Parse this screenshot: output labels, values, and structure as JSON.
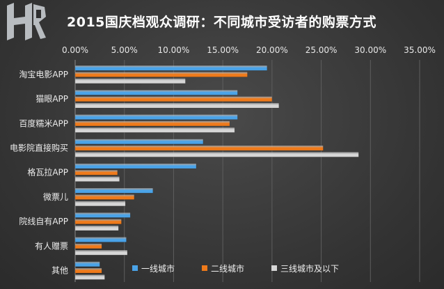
{
  "logo": {
    "text": "HR"
  },
  "chart_data": {
    "type": "bar",
    "orientation": "horizontal",
    "title": "2015国庆档观众调研：不同城市受访者的购票方式",
    "categories": [
      "淘宝电影APP",
      "猫眼APP",
      "百度糯米APP",
      "电影院直接购买",
      "格瓦拉APP",
      "微票儿",
      "院线自有APP",
      "有人赠票",
      "其他"
    ],
    "series": [
      {
        "name": "一线城市",
        "color": "#4aa3e8",
        "values": [
          19.5,
          16.5,
          16.5,
          13.0,
          12.3,
          7.9,
          5.6,
          5.2,
          2.5
        ]
      },
      {
        "name": "二线城市",
        "color": "#ef7a1a",
        "values": [
          17.5,
          20.0,
          15.7,
          25.2,
          4.3,
          6.0,
          4.7,
          2.7,
          2.7
        ]
      },
      {
        "name": "三线城市及以下",
        "color": "#d6d6d6",
        "values": [
          11.2,
          20.7,
          16.2,
          28.8,
          4.5,
          5.1,
          4.4,
          5.3,
          3.0
        ]
      }
    ],
    "x_ticks": [
      "0.00%",
      "5.00%",
      "10.00%",
      "15.00%",
      "20.00%",
      "25.00%",
      "30.00%",
      "35.00%"
    ],
    "xlim": [
      0,
      35
    ],
    "x_axis_position": "top",
    "grid": true,
    "legend_position": "bottom-right"
  }
}
